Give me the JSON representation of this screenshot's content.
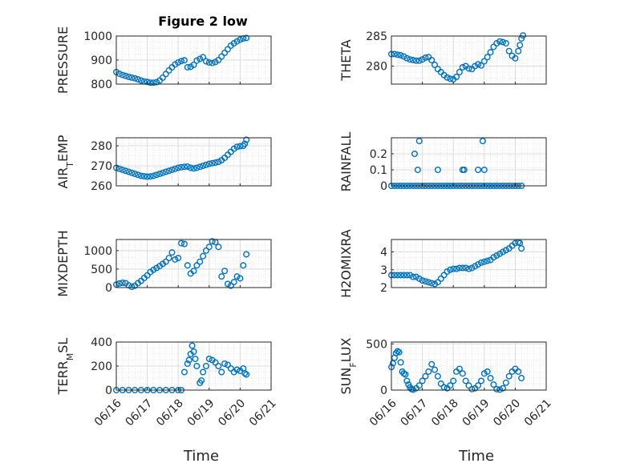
{
  "figure": {
    "title": "Figure 2 low",
    "marker_color": "#0072bd",
    "xlabel": "Time",
    "xtick_labels": [
      "06/16",
      "06/17",
      "06/18",
      "06/19",
      "06/20",
      "06/21"
    ]
  },
  "chart_data": [
    {
      "type": "scatter",
      "ylabel": "PRESSURE",
      "ylabel_sub": "",
      "ylim": [
        800,
        1000
      ],
      "yticks": [
        800,
        900,
        1000
      ],
      "xlim": [
        0,
        5
      ],
      "grid": "on",
      "marker": "circle",
      "series": [
        {
          "x": [
            0,
            0.1,
            0.2,
            0.3,
            0.4,
            0.5,
            0.6,
            0.7,
            0.8,
            0.9,
            1.0,
            1.1,
            1.2,
            1.3,
            1.4,
            1.5,
            1.6,
            1.7,
            1.8,
            1.9,
            2.0,
            2.1,
            2.2,
            2.3,
            2.4,
            2.5,
            2.6,
            2.7,
            2.8,
            2.9,
            3.0,
            3.1,
            3.2,
            3.3,
            3.4,
            3.5,
            3.6,
            3.7,
            3.8,
            3.9,
            4.0,
            4.1,
            4.2
          ],
          "y": [
            850,
            843,
            838,
            834,
            830,
            827,
            824,
            820,
            815,
            811,
            809,
            806,
            806,
            808,
            815,
            827,
            842,
            857,
            870,
            882,
            890,
            896,
            899,
            870,
            872,
            880,
            898,
            905,
            912,
            895,
            890,
            888,
            892,
            900,
            915,
            930,
            945,
            960,
            970,
            978,
            985,
            990,
            992
          ]
        }
      ]
    },
    {
      "type": "scatter",
      "ylabel": "THETA",
      "ylabel_sub": "",
      "ylim": [
        277,
        285
      ],
      "yticks": [
        280,
        285
      ],
      "xlim": [
        0,
        5
      ],
      "grid": "on",
      "marker": "circle",
      "series": [
        {
          "x": [
            0,
            0.1,
            0.2,
            0.3,
            0.4,
            0.5,
            0.6,
            0.7,
            0.8,
            0.9,
            1.0,
            1.1,
            1.2,
            1.3,
            1.4,
            1.5,
            1.6,
            1.7,
            1.8,
            1.9,
            2.0,
            2.1,
            2.2,
            2.3,
            2.4,
            2.5,
            2.6,
            2.7,
            2.8,
            2.9,
            3.0,
            3.1,
            3.2,
            3.3,
            3.4,
            3.5,
            3.6,
            3.7,
            3.8,
            3.9,
            4.0,
            4.1,
            4.15,
            4.2,
            4.25
          ],
          "y": [
            282,
            282,
            281.9,
            281.8,
            281.6,
            281.3,
            281.1,
            281,
            280.9,
            280.9,
            281.1,
            281.4,
            281.5,
            281,
            280.2,
            279.5,
            279,
            278.5,
            278.1,
            277.9,
            277.8,
            278.2,
            279,
            279.8,
            280,
            279.6,
            279.5,
            280,
            280.3,
            280.1,
            280.8,
            281.5,
            282.3,
            283.2,
            283.8,
            284.1,
            284,
            283.8,
            282.5,
            281.7,
            281.3,
            282.5,
            283.5,
            284.6,
            285.1
          ]
        }
      ]
    },
    {
      "type": "scatter",
      "ylabel": "AIR",
      "ylabel_sub": "T",
      "ylabel_tail": "EMP",
      "ylim": [
        260,
        284
      ],
      "yticks": [
        260,
        270,
        280
      ],
      "xlim": [
        0,
        5
      ],
      "grid": "on",
      "marker": "circle",
      "series": [
        {
          "x": [
            0,
            0.1,
            0.2,
            0.3,
            0.4,
            0.5,
            0.6,
            0.7,
            0.8,
            0.9,
            1.0,
            1.1,
            1.2,
            1.3,
            1.4,
            1.5,
            1.6,
            1.7,
            1.8,
            1.9,
            2.0,
            2.1,
            2.2,
            2.3,
            2.4,
            2.5,
            2.6,
            2.7,
            2.8,
            2.9,
            3.0,
            3.1,
            3.2,
            3.3,
            3.4,
            3.5,
            3.6,
            3.7,
            3.8,
            3.9,
            4.0,
            4.1,
            4.15,
            4.2
          ],
          "y": [
            269,
            268.5,
            268,
            267.5,
            267,
            266.5,
            266,
            265.5,
            265,
            264.8,
            264.6,
            264.7,
            265,
            265.5,
            266,
            266.5,
            267,
            267.5,
            268,
            268.5,
            269,
            269.3,
            269.5,
            269.6,
            269,
            268.7,
            269,
            269.5,
            270,
            270.5,
            271,
            271.3,
            271.6,
            272,
            272.8,
            274,
            275.5,
            277,
            278.5,
            279.5,
            279.8,
            280,
            281,
            283
          ]
        }
      ]
    },
    {
      "type": "scatter",
      "ylabel": "RAINFALL",
      "ylabel_sub": "",
      "ylim": [
        0,
        0.3
      ],
      "yticks": [
        0,
        0.1,
        0.2
      ],
      "xlim": [
        0,
        5
      ],
      "grid": "on",
      "marker": "circle",
      "series": [
        {
          "x": [
            0,
            0.1,
            0.2,
            0.3,
            0.4,
            0.5,
            0.6,
            0.7,
            0.8,
            0.9,
            1.0,
            1.1,
            1.2,
            1.3,
            1.4,
            1.5,
            1.6,
            1.7,
            1.8,
            1.9,
            2.0,
            2.1,
            2.2,
            2.3,
            2.4,
            2.5,
            2.6,
            2.7,
            2.8,
            2.9,
            3.0,
            3.1,
            3.2,
            3.3,
            3.4,
            3.5,
            3.6,
            3.7,
            3.8,
            3.9,
            4.0,
            4.1,
            4.2,
            0.75,
            0.85,
            0.9,
            1.5,
            2.3,
            2.35,
            2.8,
            2.95,
            3.0
          ],
          "y": [
            0,
            0,
            0,
            0,
            0,
            0,
            0,
            0,
            0,
            0,
            0,
            0,
            0,
            0,
            0,
            0,
            0,
            0,
            0,
            0,
            0,
            0,
            0,
            0,
            0,
            0,
            0,
            0,
            0,
            0,
            0,
            0,
            0,
            0,
            0,
            0,
            0,
            0,
            0,
            0,
            0,
            0,
            0,
            0.2,
            0.1,
            0.28,
            0.1,
            0.1,
            0.1,
            0.1,
            0.28,
            0.1
          ]
        }
      ]
    },
    {
      "type": "scatter",
      "ylabel": "MIXDEPTH",
      "ylabel_sub": "",
      "ylim": [
        0,
        1300
      ],
      "yticks": [
        0,
        500,
        1000
      ],
      "xlim": [
        0,
        5
      ],
      "grid": "on",
      "marker": "circle",
      "series": [
        {
          "x": [
            0,
            0.1,
            0.2,
            0.3,
            0.4,
            0.5,
            0.6,
            0.7,
            0.8,
            0.9,
            1.0,
            1.1,
            1.2,
            1.3,
            1.4,
            1.5,
            1.6,
            1.7,
            1.8,
            1.9,
            2.0,
            2.1,
            2.2,
            2.3,
            2.4,
            2.5,
            2.6,
            2.7,
            2.8,
            2.9,
            3.0,
            3.1,
            3.2,
            3.3,
            3.4,
            3.5,
            3.6,
            3.7,
            3.8,
            3.9,
            4.0,
            4.1,
            4.2
          ],
          "y": [
            80,
            110,
            130,
            120,
            60,
            20,
            50,
            120,
            180,
            260,
            330,
            420,
            480,
            530,
            580,
            640,
            700,
            800,
            950,
            760,
            800,
            1200,
            1180,
            600,
            380,
            450,
            600,
            700,
            850,
            1000,
            1100,
            1250,
            1230,
            1100,
            300,
            450,
            100,
            50,
            150,
            300,
            250,
            600,
            900
          ]
        }
      ]
    },
    {
      "type": "scatter",
      "ylabel": "H2OMIXRA",
      "ylabel_sub": "",
      "ylim": [
        2,
        4.7
      ],
      "yticks": [
        2,
        3,
        4
      ],
      "xlim": [
        0,
        5
      ],
      "grid": "on",
      "marker": "circle",
      "series": [
        {
          "x": [
            0,
            0.1,
            0.2,
            0.3,
            0.4,
            0.5,
            0.6,
            0.7,
            0.8,
            0.9,
            1.0,
            1.1,
            1.2,
            1.3,
            1.4,
            1.5,
            1.6,
            1.7,
            1.8,
            1.9,
            2.0,
            2.1,
            2.2,
            2.3,
            2.4,
            2.5,
            2.6,
            2.7,
            2.8,
            2.9,
            3.0,
            3.1,
            3.2,
            3.3,
            3.4,
            3.5,
            3.6,
            3.7,
            3.8,
            3.9,
            4.0,
            4.1,
            4.15,
            4.2
          ],
          "y": [
            2.7,
            2.7,
            2.7,
            2.7,
            2.7,
            2.7,
            2.7,
            2.6,
            2.6,
            2.5,
            2.4,
            2.35,
            2.3,
            2.25,
            2.2,
            2.3,
            2.5,
            2.7,
            2.9,
            3.0,
            3.05,
            3.05,
            3.1,
            3.1,
            3.1,
            3.05,
            3.1,
            3.2,
            3.3,
            3.4,
            3.45,
            3.5,
            3.55,
            3.7,
            3.8,
            3.9,
            4.0,
            4.1,
            4.2,
            4.35,
            4.5,
            4.55,
            4.5,
            4.2
          ]
        }
      ]
    },
    {
      "type": "scatter",
      "ylabel": "TERR",
      "ylabel_sub": "M",
      "ylabel_tail": "SL",
      "ylim": [
        0,
        400
      ],
      "yticks": [
        0,
        200,
        400
      ],
      "xlim": [
        0,
        5
      ],
      "grid": "on",
      "marker": "circle",
      "series": [
        {
          "x": [
            0,
            0.2,
            0.4,
            0.6,
            0.8,
            1.0,
            1.2,
            1.4,
            1.6,
            1.8,
            2.0,
            2.1,
            2.2,
            2.3,
            2.35,
            2.4,
            2.45,
            2.5,
            2.55,
            2.6,
            2.7,
            2.75,
            2.8,
            2.9,
            3.0,
            3.1,
            3.2,
            3.3,
            3.4,
            3.5,
            3.6,
            3.7,
            3.8,
            3.9,
            4.0,
            4.1,
            4.15,
            4.2
          ],
          "y": [
            0,
            0,
            0,
            0,
            0,
            0,
            0,
            0,
            0,
            0,
            0,
            0,
            150,
            220,
            250,
            300,
            370,
            320,
            260,
            200,
            60,
            80,
            150,
            200,
            260,
            250,
            230,
            200,
            150,
            220,
            210,
            180,
            150,
            170,
            160,
            180,
            140,
            130
          ]
        }
      ]
    },
    {
      "type": "scatter",
      "ylabel": "SUN",
      "ylabel_sub": "F",
      "ylabel_tail": "LUX",
      "ylim": [
        0,
        520
      ],
      "yticks": [
        0,
        500
      ],
      "xlim": [
        0,
        5
      ],
      "grid": "on",
      "marker": "circle",
      "series": [
        {
          "x": [
            0,
            0.05,
            0.1,
            0.15,
            0.2,
            0.25,
            0.3,
            0.35,
            0.4,
            0.45,
            0.5,
            0.55,
            0.6,
            0.65,
            0.7,
            0.8,
            0.9,
            1.0,
            1.1,
            1.2,
            1.3,
            1.4,
            1.5,
            1.6,
            1.7,
            1.8,
            1.9,
            2.0,
            2.1,
            2.2,
            2.3,
            2.4,
            2.5,
            2.6,
            2.7,
            2.8,
            2.9,
            3.0,
            3.1,
            3.2,
            3.3,
            3.4,
            3.5,
            3.6,
            3.7,
            3.8,
            3.9,
            4.0,
            4.1,
            4.2
          ],
          "y": [
            250,
            290,
            350,
            400,
            420,
            410,
            300,
            200,
            180,
            170,
            100,
            60,
            30,
            10,
            5,
            20,
            50,
            100,
            150,
            200,
            280,
            220,
            150,
            70,
            30,
            20,
            50,
            100,
            200,
            230,
            180,
            100,
            50,
            10,
            20,
            50,
            100,
            180,
            200,
            130,
            60,
            10,
            5,
            20,
            80,
            150,
            200,
            230,
            200,
            130
          ]
        }
      ]
    }
  ]
}
